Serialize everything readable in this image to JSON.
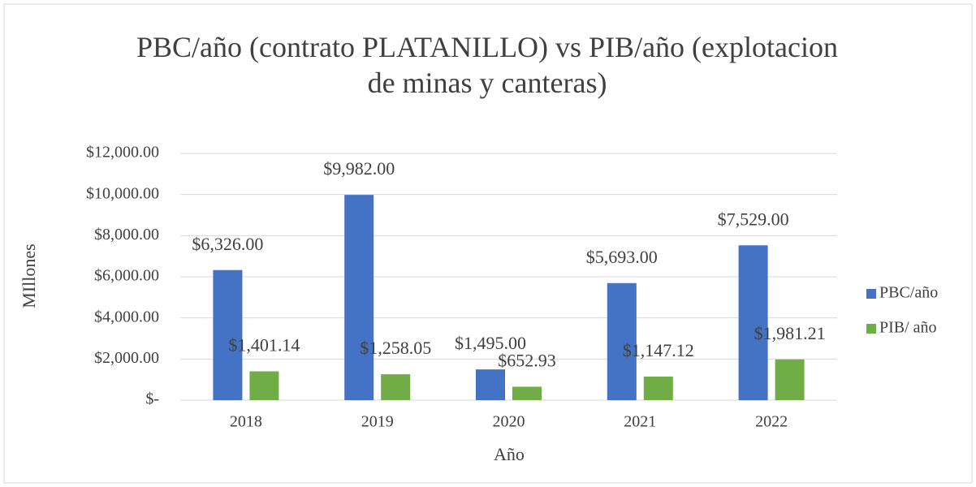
{
  "chart_data": {
    "type": "bar",
    "title": "PBC/año (contrato PLATANILLO) vs PIB/año (explotacion de minas y canteras)",
    "x_label": "Año",
    "y_label": "MIllones",
    "categories": [
      "2018",
      "2019",
      "2020",
      "2021",
      "2022"
    ],
    "series": [
      {
        "name": "PBC/año",
        "color": "#4472c4",
        "values": [
          6326,
          9982,
          1495,
          5693,
          7529
        ],
        "value_labels": [
          "$6,326.00",
          "$9,982.00",
          "$1,495.00",
          "$5,693.00",
          "$7,529.00"
        ]
      },
      {
        "name": "PIB/ año",
        "color": "#70ad47",
        "values": [
          1401.14,
          1258.05,
          652.93,
          1147.12,
          1981.21
        ],
        "value_labels": [
          "$1,401.14",
          "$1,258.05",
          "$652.93",
          "$1,147.12",
          "$1,981.21"
        ]
      }
    ],
    "ylim": [
      0,
      12000
    ],
    "yticks": [
      {
        "value": 0,
        "label": "$-"
      },
      {
        "value": 2000,
        "label": "$2,000.00"
      },
      {
        "value": 4000,
        "label": "$4,000.00"
      },
      {
        "value": 6000,
        "label": "$6,000.00"
      },
      {
        "value": 8000,
        "label": "$8,000.00"
      },
      {
        "value": 10000,
        "label": "$10,000.00"
      },
      {
        "value": 12000,
        "label": "$12,000.00"
      }
    ],
    "grid": true,
    "legend": "right"
  }
}
